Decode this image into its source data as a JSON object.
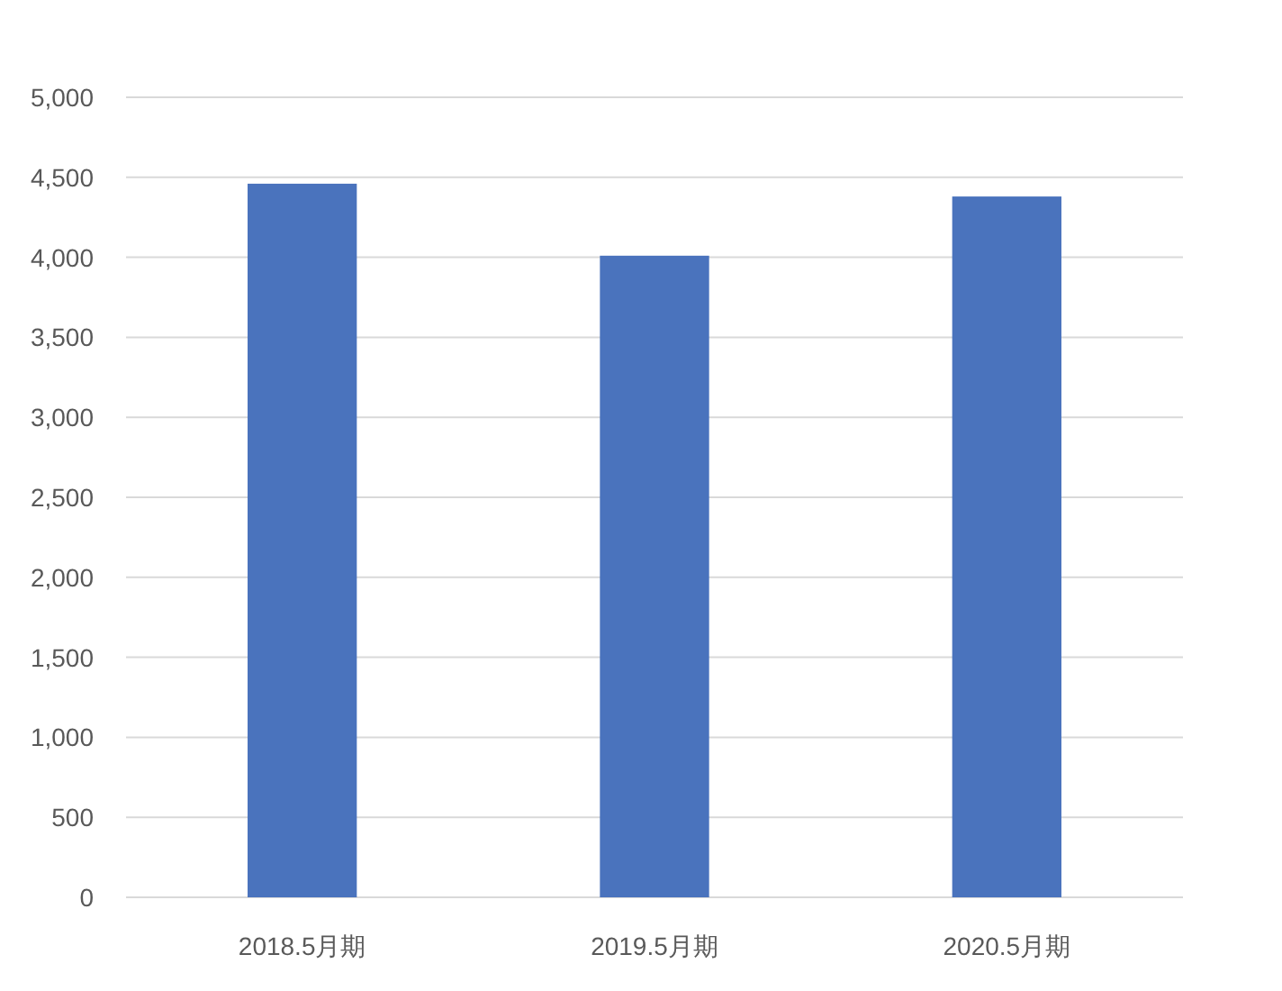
{
  "chart_data": {
    "type": "bar",
    "categories": [
      "2018.5月期",
      "2019.5月期",
      "2020.5月期"
    ],
    "values": [
      4460,
      4010,
      4380
    ],
    "color": "#4a73bd",
    "ylim": [
      0,
      5000
    ],
    "yticks": [
      {
        "value": 0,
        "label": "0"
      },
      {
        "value": 500,
        "label": "500"
      },
      {
        "value": 1000,
        "label": "1,000"
      },
      {
        "value": 1500,
        "label": "1,500"
      },
      {
        "value": 2000,
        "label": "2,000"
      },
      {
        "value": 2500,
        "label": "2,500"
      },
      {
        "value": 3000,
        "label": "3,000"
      },
      {
        "value": 3500,
        "label": "3,500"
      },
      {
        "value": 4000,
        "label": "4,000"
      },
      {
        "value": 4500,
        "label": "4,500"
      },
      {
        "value": 5000,
        "label": "5,000"
      }
    ],
    "grid": "y"
  }
}
